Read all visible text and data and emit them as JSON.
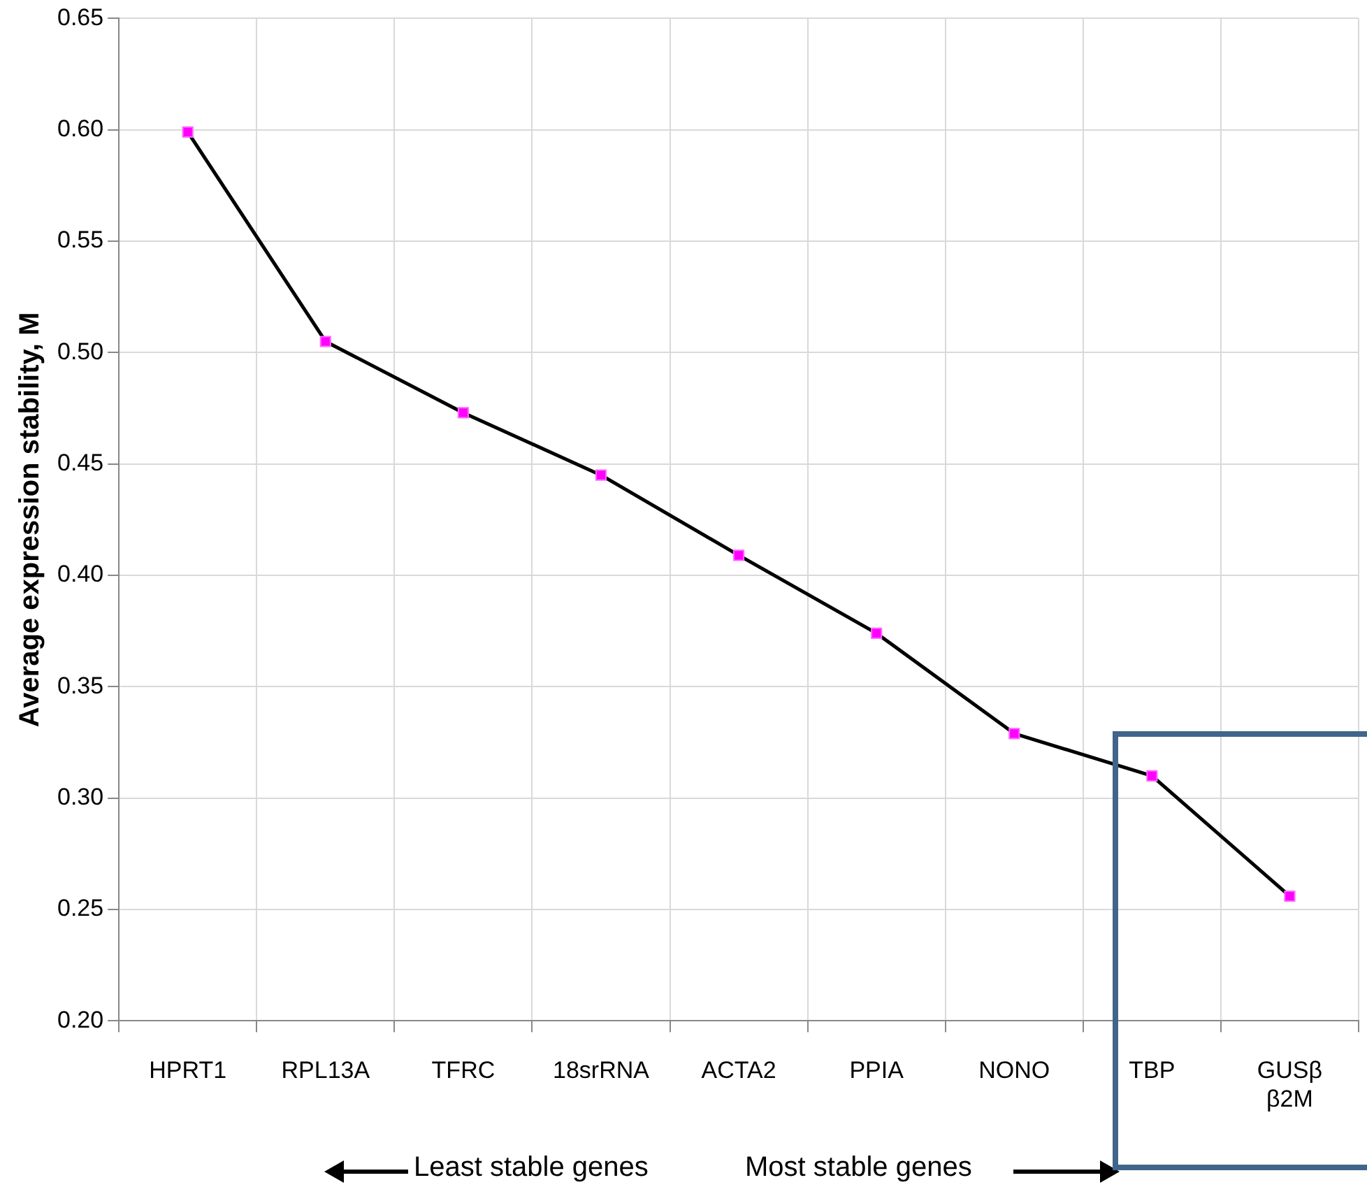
{
  "chart_data": {
    "type": "line",
    "ylabel": "Average expression stability, M",
    "categories": [
      "HPRT1",
      "RPL13A",
      "TFRC",
      "18srRNA",
      "ACTA2",
      "PPIA",
      "NONO",
      "TBP",
      "GUSβ\nβ2M"
    ],
    "series": [
      {
        "color": "#000000",
        "values": [
          0.599,
          0.505,
          0.473,
          0.445,
          0.409,
          0.374,
          0.329,
          0.31,
          0.256
        ]
      }
    ],
    "ylim": [
      0.2,
      0.65
    ],
    "yticks": [
      {
        "value": 0.2,
        "label": "0.20"
      },
      {
        "value": 0.25,
        "label": "0.25"
      },
      {
        "value": 0.3,
        "label": "0.30"
      },
      {
        "value": 0.35,
        "label": "0.35"
      },
      {
        "value": 0.4,
        "label": "0.40"
      },
      {
        "value": 0.45,
        "label": "0.45"
      },
      {
        "value": 0.5,
        "label": "0.50"
      },
      {
        "value": 0.55,
        "label": "0.55"
      },
      {
        "value": 0.6,
        "label": "0.60"
      },
      {
        "value": 0.65,
        "label": "0.65"
      }
    ],
    "grid": true,
    "legend": false,
    "marker": "square",
    "line_style": "solid",
    "annotations": [
      "Least stable genes",
      "Most stable genes"
    ]
  }
}
